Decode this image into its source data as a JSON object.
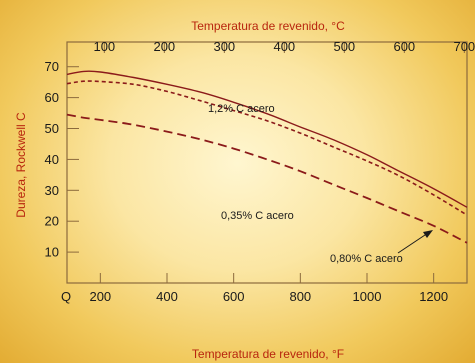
{
  "colors": {
    "curve": "#8b1a1a",
    "frame": "#8c6a3c",
    "text": "#1a1a1a",
    "title": "#b8260e"
  },
  "chart_data": {
    "type": "line",
    "title": "",
    "xlabel": "Temperatura de revenido, °F",
    "x2label": "Temperatura de revenido, °C",
    "ylabel": "Dureza, Rockwell C",
    "xlim": [
      100,
      1300
    ],
    "ylim": [
      0,
      78
    ],
    "x_ticks": [
      200,
      400,
      600,
      800,
      1000,
      1200
    ],
    "x2_ticks": [
      {
        "label": "100",
        "f": 212
      },
      {
        "label": "200",
        "f": 392
      },
      {
        "label": "300",
        "f": 572
      },
      {
        "label": "400",
        "f": 752
      },
      {
        "label": "500",
        "f": 932
      },
      {
        "label": "600",
        "f": 1112
      },
      {
        "label": "700",
        "f": 1292
      }
    ],
    "y_ticks": [
      10,
      20,
      30,
      40,
      50,
      60,
      70
    ],
    "origin_label": "Q",
    "grid": false,
    "series": [
      {
        "name": "1,2% C acero",
        "style": "solid",
        "x": [
          100,
          150,
          200,
          300,
          400,
          500,
          600,
          700,
          800,
          900,
          1000,
          1100,
          1200,
          1300
        ],
        "y": [
          67.5,
          68.5,
          68.3,
          66.5,
          64.3,
          61.8,
          58.5,
          54.8,
          50.5,
          46.3,
          41.5,
          36.0,
          30.5,
          24.5
        ]
      },
      {
        "name": "0,80% C acero",
        "style": "short-dash",
        "x": [
          100,
          150,
          200,
          300,
          400,
          500,
          600,
          700,
          800,
          900,
          1000,
          1100,
          1200,
          1300
        ],
        "y": [
          64.5,
          65.3,
          65.2,
          64.3,
          62.0,
          59.0,
          55.8,
          52.5,
          48.5,
          44.0,
          39.5,
          34.5,
          28.5,
          22.0
        ]
      },
      {
        "name": "0,35% C acero",
        "style": "long-dash",
        "x": [
          100,
          150,
          200,
          300,
          400,
          500,
          600,
          700,
          800,
          900,
          1000,
          1100,
          1200,
          1300
        ],
        "y": [
          54.5,
          53.5,
          52.8,
          51.2,
          49.0,
          46.5,
          43.5,
          40.0,
          36.2,
          31.8,
          27.5,
          23.0,
          18.5,
          13.0
        ]
      }
    ]
  }
}
